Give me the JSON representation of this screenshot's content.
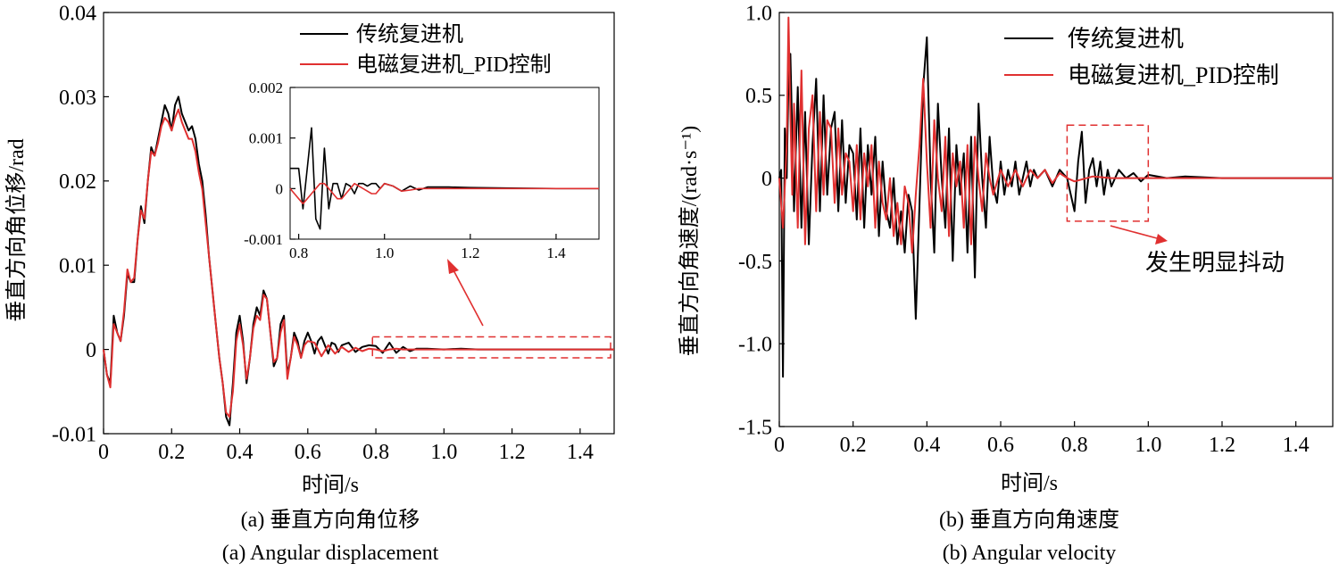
{
  "chart_data": [
    {
      "type": "line",
      "caption_cn": "(a) 垂直方向角位移",
      "caption_en": "(a) Angular displacement",
      "xlabel": "时间/s",
      "ylabel": "垂直方向角位移/rad",
      "xlim": [
        0,
        1.5
      ],
      "ylim": [
        -0.01,
        0.04
      ],
      "xticks": [
        "0",
        "0.2",
        "0.4",
        "0.6",
        "0.8",
        "1.0",
        "1.2",
        "1.4"
      ],
      "yticks": [
        "-0.01",
        "0",
        "0.01",
        "0.02",
        "0.03",
        "0.04"
      ],
      "legend_position": "top-right",
      "series": [
        {
          "name": "传统复进机",
          "color": "#000000",
          "x": [
            0,
            0.01,
            0.02,
            0.03,
            0.04,
            0.05,
            0.06,
            0.07,
            0.08,
            0.09,
            0.1,
            0.11,
            0.12,
            0.13,
            0.14,
            0.15,
            0.16,
            0.17,
            0.18,
            0.19,
            0.2,
            0.21,
            0.22,
            0.23,
            0.24,
            0.25,
            0.26,
            0.27,
            0.28,
            0.29,
            0.3,
            0.31,
            0.32,
            0.33,
            0.34,
            0.35,
            0.36,
            0.37,
            0.38,
            0.39,
            0.4,
            0.41,
            0.42,
            0.43,
            0.44,
            0.45,
            0.46,
            0.47,
            0.48,
            0.49,
            0.5,
            0.51,
            0.52,
            0.53,
            0.54,
            0.55,
            0.56,
            0.57,
            0.58,
            0.59,
            0.6,
            0.61,
            0.62,
            0.63,
            0.64,
            0.65,
            0.66,
            0.67,
            0.68,
            0.69,
            0.7,
            0.72,
            0.74,
            0.76,
            0.78,
            0.8,
            0.82,
            0.84,
            0.86,
            0.88,
            0.9,
            0.92,
            0.95,
            1.0,
            1.05,
            1.1,
            1.2,
            1.3,
            1.4,
            1.5
          ],
          "values": [
            0,
            -0.003,
            -0.004,
            0.004,
            0.002,
            0.001,
            0.004,
            0.009,
            0.008,
            0.008,
            0.013,
            0.017,
            0.015,
            0.02,
            0.024,
            0.023,
            0.025,
            0.027,
            0.029,
            0.028,
            0.026,
            0.029,
            0.03,
            0.028,
            0.027,
            0.026,
            0.0265,
            0.025,
            0.022,
            0.02,
            0.016,
            0.011,
            0.007,
            0.003,
            -0.001,
            -0.004,
            -0.008,
            -0.009,
            -0.004,
            0.002,
            0.004,
            0.001,
            -0.004,
            -0.001,
            0.003,
            0.005,
            0.004,
            0.007,
            0.006,
            0.002,
            -0.002,
            -0.001,
            0.003,
            0.004,
            -0.003,
            -0.001,
            0.002,
            0.001,
            -0.001,
            0.001,
            0.002,
            0.001,
            -0.0005,
            0.001,
            0.0015,
            0.0005,
            -0.0005,
            0.0008,
            0.0006,
            -0.0003,
            0.0005,
            0.0008,
            -0.0003,
            0.0003,
            0.0005,
            0.0004,
            -0.0004,
            0.0008,
            -0.0004,
            0.0003,
            -0.0002,
            0.0001,
            0.0001,
            0.0,
            0.0001,
            0.0,
            0,
            0,
            0,
            0
          ]
        },
        {
          "name": "电磁复进机_PID控制",
          "color": "#e03030",
          "x": [
            0,
            0.01,
            0.02,
            0.03,
            0.04,
            0.05,
            0.06,
            0.07,
            0.08,
            0.09,
            0.1,
            0.11,
            0.12,
            0.13,
            0.14,
            0.15,
            0.16,
            0.17,
            0.18,
            0.19,
            0.2,
            0.21,
            0.22,
            0.23,
            0.24,
            0.25,
            0.26,
            0.27,
            0.28,
            0.29,
            0.3,
            0.31,
            0.32,
            0.33,
            0.34,
            0.35,
            0.36,
            0.37,
            0.38,
            0.39,
            0.4,
            0.41,
            0.42,
            0.43,
            0.44,
            0.45,
            0.46,
            0.47,
            0.48,
            0.49,
            0.5,
            0.51,
            0.52,
            0.53,
            0.54,
            0.55,
            0.56,
            0.57,
            0.58,
            0.59,
            0.6,
            0.62,
            0.64,
            0.66,
            0.68,
            0.7,
            0.72,
            0.74,
            0.76,
            0.78,
            0.8,
            0.82,
            0.84,
            0.86,
            0.88,
            0.9,
            0.95,
            1.0,
            1.1,
            1.2,
            1.3,
            1.4,
            1.5
          ],
          "values": [
            0,
            -0.003,
            -0.0045,
            0.003,
            0.002,
            0.001,
            0.0045,
            0.0095,
            0.008,
            0.0085,
            0.013,
            0.0165,
            0.0155,
            0.02,
            0.0235,
            0.023,
            0.0245,
            0.0265,
            0.0275,
            0.027,
            0.026,
            0.0275,
            0.0285,
            0.027,
            0.026,
            0.025,
            0.025,
            0.0235,
            0.021,
            0.019,
            0.015,
            0.011,
            0.007,
            0.003,
            -0.001,
            -0.004,
            -0.0075,
            -0.008,
            -0.005,
            0.001,
            0.003,
            0.0005,
            -0.0035,
            -0.001,
            0.0025,
            0.004,
            0.0035,
            0.0065,
            0.006,
            0.002,
            -0.0015,
            -0.001,
            0.002,
            0.0035,
            -0.0035,
            -0.001,
            0.0015,
            0.0005,
            -0.001,
            0.0005,
            0.001,
            0.0008,
            -0.0008,
            0.0005,
            -0.0005,
            0.0003,
            -0.0003,
            0.0002,
            -0.0002,
            0.0001,
            0.0,
            -0.0002,
            0.0,
            0.0001,
            0.0,
            0.0,
            0,
            0,
            0,
            0,
            0,
            0,
            0
          ]
        }
      ],
      "inset": {
        "xlim": [
          0.78,
          1.5
        ],
        "ylim": [
          -0.001,
          0.002
        ],
        "xticks": [
          "0.8",
          "1.0",
          "1.2",
          "1.4"
        ],
        "yticks": [
          "-0.001",
          "0",
          "0.001",
          "0.002"
        ],
        "series": [
          {
            "name": "传统复进机",
            "color": "#000000",
            "x": [
              0.78,
              0.79,
              0.8,
              0.81,
              0.82,
              0.83,
              0.84,
              0.85,
              0.86,
              0.87,
              0.88,
              0.89,
              0.9,
              0.91,
              0.92,
              0.93,
              0.94,
              0.95,
              0.96,
              0.97,
              0.98,
              0.99,
              1.0,
              1.02,
              1.04,
              1.06,
              1.08,
              1.1,
              1.15,
              1.2,
              1.3,
              1.4,
              1.5
            ],
            "values": [
              0.0004,
              0.0004,
              0.0004,
              -0.0004,
              0.0004,
              0.0012,
              -0.0006,
              -0.0008,
              0.0008,
              -0.0004,
              0.0001,
              0.0001,
              -0.0002,
              0.0001,
              5e-05,
              -0.0001,
              0.0001,
              0.0001,
              5e-05,
              0.0001,
              0.0001,
              0.0,
              0.0001,
              5e-05,
              -5e-05,
              5e-05,
              -3e-05,
              3e-05,
              3e-05,
              2e-05,
              1e-05,
              0.0,
              0.0
            ]
          },
          {
            "name": "电磁复进机_PID控制",
            "color": "#e03030",
            "x": [
              0.78,
              0.79,
              0.8,
              0.81,
              0.82,
              0.83,
              0.84,
              0.85,
              0.86,
              0.87,
              0.88,
              0.89,
              0.9,
              0.91,
              0.92,
              0.93,
              0.94,
              0.95,
              0.96,
              0.97,
              0.98,
              0.99,
              1.0,
              1.02,
              1.04,
              1.06,
              1.08,
              1.1,
              1.15,
              1.2,
              1.3,
              1.4,
              1.5
            ],
            "values": [
              0.0,
              -0.0001,
              -0.0002,
              -0.0003,
              -0.0002,
              -0.0001,
              0.0,
              0.0001,
              0.0001,
              0.0,
              -0.0001,
              -0.0002,
              -0.0002,
              -0.0001,
              0.0,
              0.0001,
              5e-05,
              0.0,
              -5e-05,
              -0.0001,
              -0.0001,
              0.0,
              0.0001,
              5e-05,
              -5e-05,
              -3e-05,
              0.0,
              0.0,
              0.0,
              0.0,
              0.0,
              0.0,
              0.0
            ]
          }
        ]
      },
      "highlight_box": {
        "x0": 0.79,
        "x1": 1.5,
        "y0": -0.001,
        "y1": 0.0015
      }
    },
    {
      "type": "line",
      "caption_cn": "(b) 垂直方向角速度",
      "caption_en": "(b) Angular velocity",
      "xlabel": "时间/s",
      "ylabel": "垂直方向角速度/(rad·s⁻¹)",
      "xlim": [
        0,
        1.5
      ],
      "ylim": [
        -1.5,
        1.0
      ],
      "xticks": [
        "0",
        "0.2",
        "0.4",
        "0.6",
        "0.8",
        "1.0",
        "1.2",
        "1.4"
      ],
      "yticks": [
        "-1.5",
        "-1.0",
        "-0.5",
        "0",
        "0.5",
        "1.0"
      ],
      "legend_position": "top-right",
      "annotation": "发生明显抖动",
      "highlight_box": {
        "x0": 0.78,
        "x1": 1.0,
        "y0": -0.26,
        "y1": 0.32
      },
      "series": [
        {
          "name": "传统复进机",
          "color": "#000000",
          "x": [
            0,
            0.005,
            0.01,
            0.015,
            0.02,
            0.025,
            0.03,
            0.04,
            0.05,
            0.06,
            0.07,
            0.08,
            0.09,
            0.1,
            0.11,
            0.12,
            0.13,
            0.14,
            0.15,
            0.16,
            0.17,
            0.18,
            0.19,
            0.2,
            0.21,
            0.22,
            0.23,
            0.24,
            0.25,
            0.26,
            0.27,
            0.28,
            0.29,
            0.3,
            0.31,
            0.32,
            0.33,
            0.34,
            0.35,
            0.36,
            0.37,
            0.38,
            0.39,
            0.4,
            0.41,
            0.42,
            0.43,
            0.44,
            0.45,
            0.46,
            0.47,
            0.48,
            0.49,
            0.5,
            0.51,
            0.52,
            0.53,
            0.54,
            0.55,
            0.56,
            0.57,
            0.58,
            0.59,
            0.6,
            0.61,
            0.62,
            0.63,
            0.64,
            0.65,
            0.66,
            0.67,
            0.68,
            0.69,
            0.7,
            0.72,
            0.74,
            0.76,
            0.78,
            0.8,
            0.81,
            0.82,
            0.83,
            0.84,
            0.85,
            0.86,
            0.87,
            0.88,
            0.89,
            0.9,
            0.92,
            0.94,
            0.96,
            0.98,
            1.0,
            1.05,
            1.1,
            1.2,
            1.3,
            1.4,
            1.5
          ],
          "values": [
            0,
            0.05,
            -1.2,
            0.3,
            0.0,
            0.6,
            0.75,
            -0.2,
            0.55,
            -0.3,
            0.4,
            -0.4,
            0.2,
            0.6,
            -0.2,
            0.5,
            -0.1,
            0.3,
            0.4,
            -0.2,
            0.35,
            -0.15,
            0.2,
            0.15,
            -0.25,
            0.3,
            -0.3,
            0.2,
            -0.1,
            0.25,
            -0.35,
            0.1,
            -0.2,
            -0.3,
            0.0,
            -0.4,
            -0.2,
            -0.45,
            -0.1,
            -0.2,
            -0.85,
            -0.15,
            0.55,
            0.85,
            0.0,
            -0.45,
            0.45,
            0.0,
            -0.3,
            0.3,
            -0.5,
            0.2,
            -0.1,
            0.15,
            -0.45,
            0.25,
            -0.6,
            0.45,
            0.0,
            -0.3,
            0.25,
            -0.05,
            -0.15,
            0.1,
            -0.1,
            0.05,
            -0.05,
            0.1,
            -0.1,
            0.0,
            0.1,
            -0.05,
            0.05,
            0.0,
            0.05,
            -0.05,
            0.05,
            0.0,
            -0.2,
            0.1,
            0.28,
            -0.15,
            0.05,
            0.12,
            -0.05,
            0.1,
            -0.1,
            0.05,
            -0.05,
            0.05,
            0.0,
            0.03,
            -0.02,
            0.02,
            0.0,
            0.01,
            0.0,
            0.0,
            0.0,
            0.0
          ]
        },
        {
          "name": "电磁复进机_PID控制",
          "color": "#e03030",
          "x": [
            0,
            0.01,
            0.02,
            0.025,
            0.03,
            0.035,
            0.04,
            0.05,
            0.06,
            0.07,
            0.08,
            0.09,
            0.1,
            0.11,
            0.12,
            0.13,
            0.14,
            0.15,
            0.16,
            0.17,
            0.18,
            0.19,
            0.2,
            0.21,
            0.22,
            0.23,
            0.24,
            0.25,
            0.26,
            0.27,
            0.28,
            0.29,
            0.3,
            0.31,
            0.32,
            0.33,
            0.34,
            0.35,
            0.36,
            0.37,
            0.38,
            0.39,
            0.4,
            0.41,
            0.42,
            0.43,
            0.44,
            0.45,
            0.46,
            0.47,
            0.48,
            0.49,
            0.5,
            0.51,
            0.52,
            0.53,
            0.54,
            0.55,
            0.56,
            0.57,
            0.58,
            0.6,
            0.62,
            0.64,
            0.66,
            0.68,
            0.7,
            0.72,
            0.74,
            0.76,
            0.78,
            0.8,
            0.85,
            0.9,
            0.95,
            1.0,
            1.1,
            1.2,
            1.3,
            1.4,
            1.5
          ],
          "values": [
            0,
            -0.3,
            0.2,
            0.97,
            0.4,
            -0.1,
            0.45,
            -0.3,
            0.65,
            -0.4,
            0.3,
            0.5,
            -0.2,
            0.4,
            -0.1,
            0.35,
            0.3,
            -0.15,
            0.3,
            -0.1,
            0.15,
            0.1,
            -0.2,
            0.2,
            -0.25,
            0.15,
            -0.05,
            0.2,
            -0.3,
            0.1,
            -0.15,
            -0.25,
            0.0,
            -0.35,
            -0.15,
            -0.4,
            -0.05,
            -0.15,
            -0.45,
            -0.1,
            0.2,
            0.6,
            0.1,
            -0.3,
            0.35,
            0.0,
            -0.2,
            0.25,
            -0.35,
            0.15,
            -0.05,
            0.1,
            -0.3,
            0.2,
            -0.4,
            0.25,
            0.0,
            -0.2,
            0.15,
            0.0,
            -0.1,
            0.05,
            -0.05,
            0.05,
            -0.05,
            0.05,
            0.0,
            0.05,
            -0.03,
            0.03,
            0.0,
            -0.02,
            0.01,
            0.0,
            0.0,
            0.0,
            0.0,
            0.0,
            0.0,
            0.0,
            0.0
          ]
        }
      ]
    }
  ]
}
